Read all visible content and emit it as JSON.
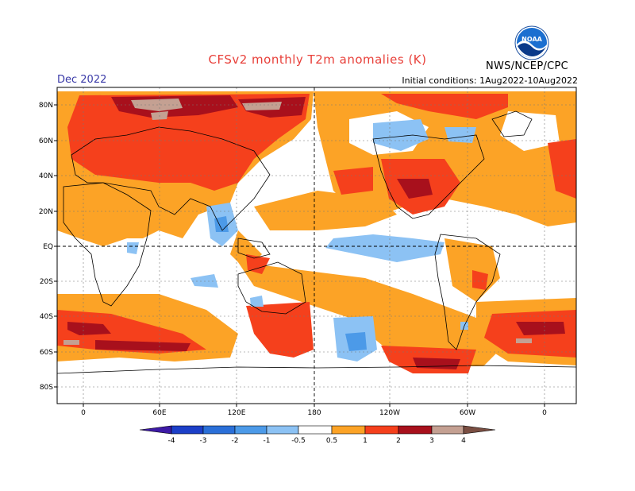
{
  "header": {
    "title": "CFSv2 monthly T2m anomalies (K)",
    "month": "Dec 2022",
    "initial_conditions": "Initial conditions: 1Aug2022-10Aug2022",
    "agency": "NWS/NCEP/CPC",
    "logo_icon": "noaa-logo-icon"
  },
  "map": {
    "lat_labels": [
      "80N",
      "60N",
      "40N",
      "20N",
      "EQ",
      "20S",
      "40S",
      "60S",
      "80S"
    ],
    "lon_labels": [
      "0",
      "60E",
      "120E",
      "180",
      "120W",
      "60W",
      "0"
    ]
  },
  "legend": {
    "ticks": [
      "-4",
      "-3",
      "-2",
      "-1",
      "-0.5",
      "0.5",
      "1",
      "2",
      "3",
      "4"
    ],
    "colors": {
      "lt_-4": "#3d1aa6",
      "-4_-3": "#1c3fc8",
      "-3_-2": "#2a6fd8",
      "-2_-1": "#4c9ae8",
      "-1_-0.5": "#8cc2f4",
      "-0.5_0.5": "#ffffff",
      "0.5_1": "#fca326",
      "1_2": "#f5401c",
      "2_3": "#a8101c",
      "3_4": "#c4a092",
      "gt_4": "#7a4e42"
    }
  }
}
